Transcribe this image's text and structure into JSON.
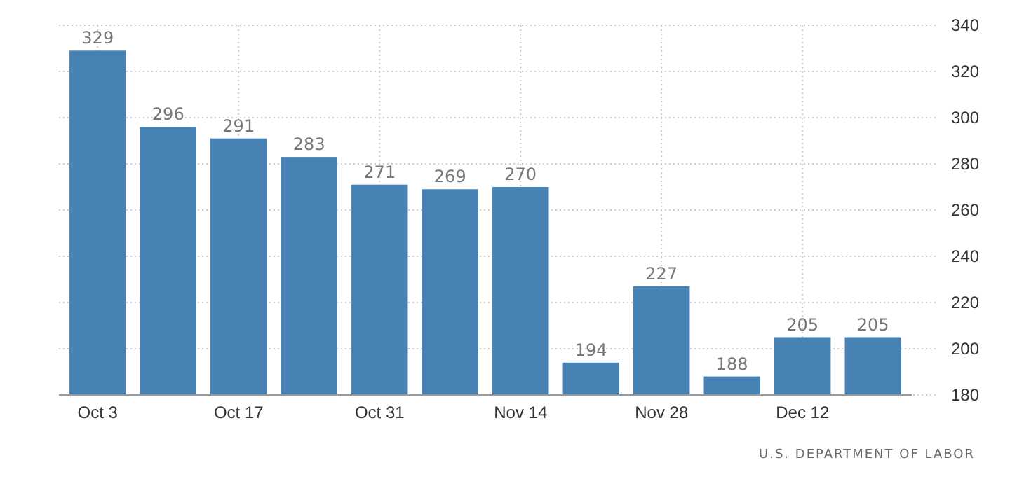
{
  "chart_data": {
    "type": "bar",
    "categories": [
      "Oct 3",
      null,
      "Oct 17",
      null,
      "Oct 31",
      null,
      "Nov 14",
      null,
      "Nov 28",
      null,
      "Dec 12",
      null
    ],
    "values": [
      329,
      296,
      291,
      283,
      271,
      269,
      270,
      194,
      227,
      188,
      205,
      205
    ],
    "color": "#4682b4",
    "ylim": [
      180,
      340
    ],
    "yticks": [
      180,
      200,
      220,
      240,
      260,
      280,
      300,
      320,
      340
    ],
    "grid": true,
    "data_labels": true,
    "annotations": [
      "U.S. DEPARTMENT OF LABOR"
    ]
  }
}
